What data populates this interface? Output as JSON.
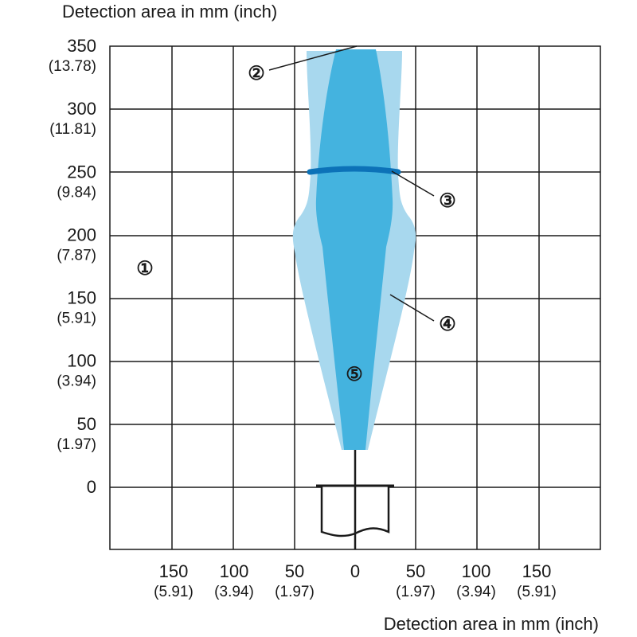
{
  "title_top": "Detection area in mm (inch)",
  "title_bottom": "Detection area in mm (inch)",
  "y_ticks": [
    {
      "value": 350,
      "mm": "350",
      "inch": "(13.78)"
    },
    {
      "value": 300,
      "mm": "300",
      "inch": "(11.81)"
    },
    {
      "value": 250,
      "mm": "250",
      "inch": "(9.84)"
    },
    {
      "value": 200,
      "mm": "200",
      "inch": "(7.87)"
    },
    {
      "value": 150,
      "mm": "150",
      "inch": "(5.91)"
    },
    {
      "value": 100,
      "mm": "100",
      "inch": "(3.94)"
    },
    {
      "value": 50,
      "mm": "50",
      "inch": "(1.97)"
    },
    {
      "value": 0,
      "mm": "0",
      "inch": ""
    }
  ],
  "x_ticks": [
    {
      "value": -150,
      "mm": "150",
      "inch": "(5.91)"
    },
    {
      "value": -100,
      "mm": "100",
      "inch": "(3.94)"
    },
    {
      "value": -50,
      "mm": "50",
      "inch": "(1.97)"
    },
    {
      "value": 0,
      "mm": "0",
      "inch": ""
    },
    {
      "value": 50,
      "mm": "50",
      "inch": "(1.97)"
    },
    {
      "value": 100,
      "mm": "100",
      "inch": "(3.94)"
    },
    {
      "value": 150,
      "mm": "150",
      "inch": "(5.91)"
    }
  ],
  "callouts": {
    "c1": "①",
    "c2": "②",
    "c3": "③",
    "c4": "④",
    "c5": "⑤"
  },
  "colors": {
    "outer_zone": "#a8d8ee",
    "inner_zone": "#44b3df",
    "ring": "#0c72b8",
    "grid": "#1a1a1a"
  }
}
